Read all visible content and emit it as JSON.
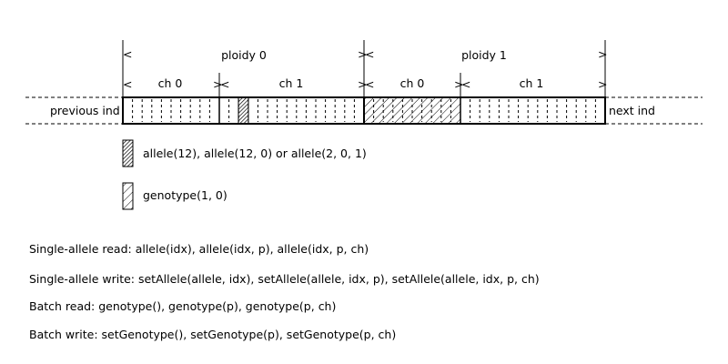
{
  "labels": {
    "ploidy0": "ploidy 0",
    "ploidy1": "ploidy 1",
    "p0_ch0": "ch 0",
    "p0_ch1": "ch 1",
    "p1_ch0": "ch 0",
    "p1_ch1": "ch 1",
    "previous_ind": "previous ind",
    "next_ind": "next ind",
    "arrow_left": "<",
    "arrow_right": ">"
  },
  "legend": {
    "allele": "allele(12), allele(12, 0) or allele(2, 0, 1)",
    "genotype": "genotype(1, 0)"
  },
  "descriptions": [
    "Single-allele read:  allele(idx), allele(idx, p), allele(idx, p, ch)",
    "Single-allele write: setAllele(allele, idx), setAllele(allele, idx, p), setAllele(allele, idx, p, ch)",
    "Batch read:  genotype(), genotype(p), genotype(p, ch)",
    "Batch write: setGenotype(), setGenotype(p), setGenotype(p, ch)"
  ]
}
